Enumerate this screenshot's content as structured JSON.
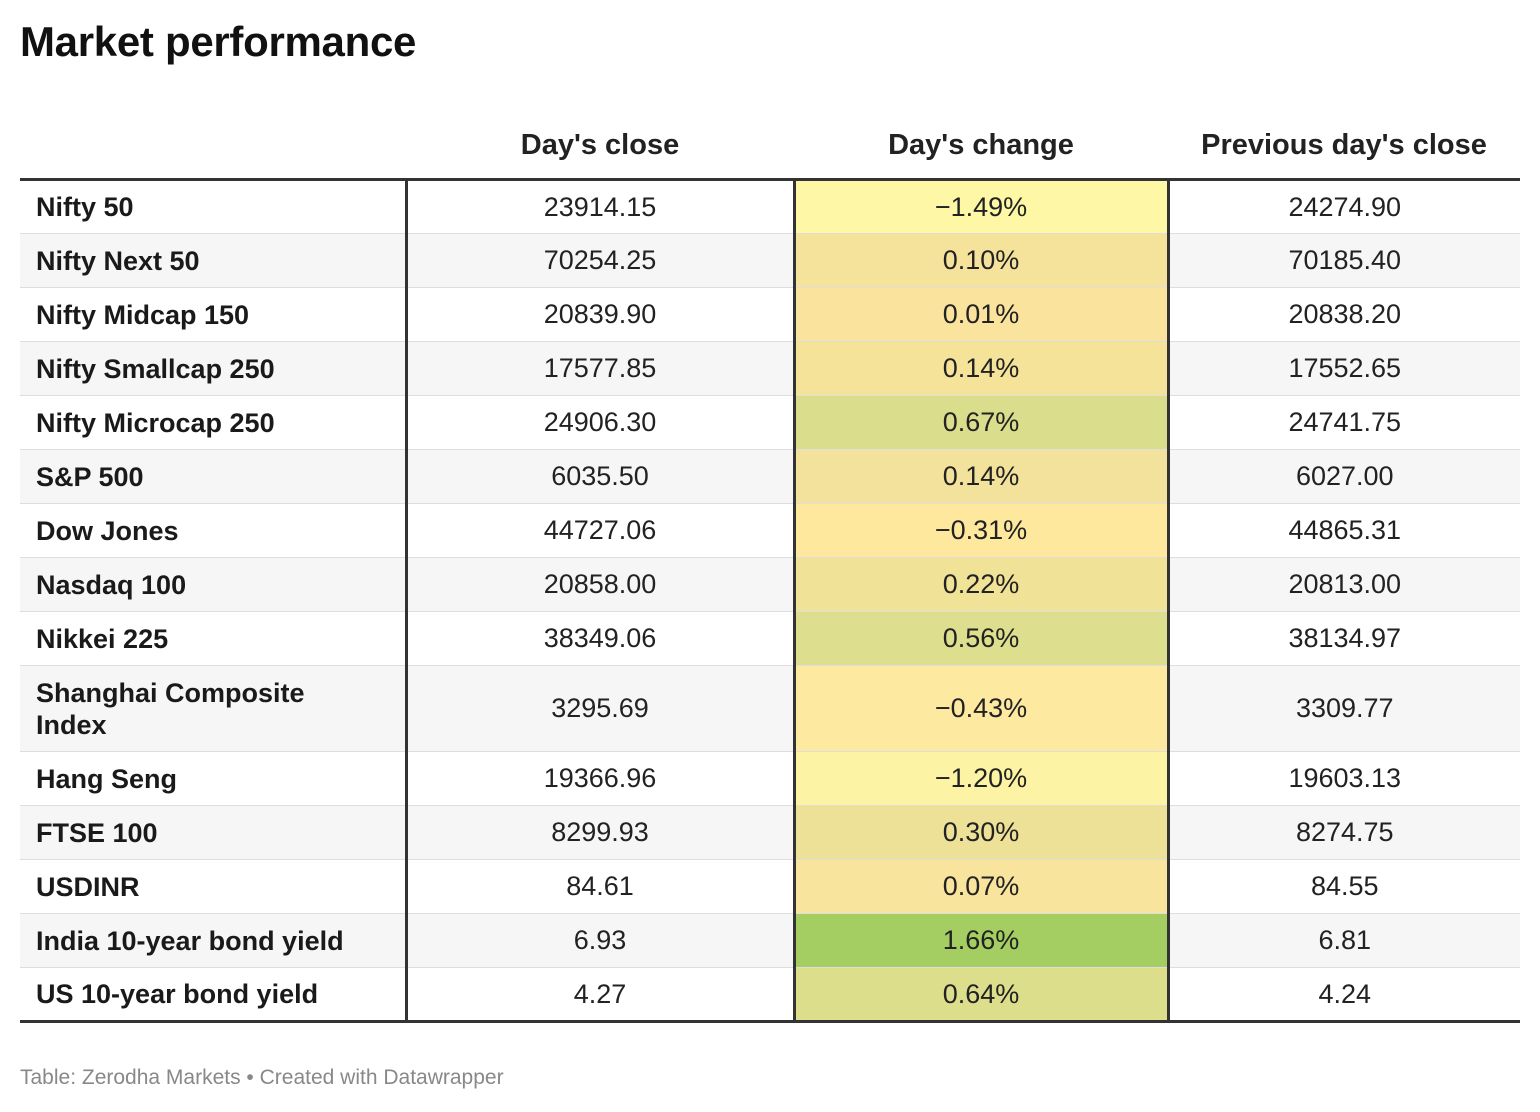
{
  "title": "Market performance",
  "footer": "Table: Zerodha Markets • Created with Datawrapper",
  "columns": [
    "",
    "Day's close",
    "Day's change",
    "Previous day's close"
  ],
  "rows": [
    {
      "name": "Nifty 50",
      "close": "23914.15",
      "change": "−1.49%",
      "prev": "24274.90",
      "color": "#fdf7a6"
    },
    {
      "name": "Nifty Next 50",
      "close": "70254.25",
      "change": "0.10%",
      "prev": "70185.40",
      "color": "#f6e39b"
    },
    {
      "name": "Nifty Midcap 150",
      "close": "20839.90",
      "change": "0.01%",
      "prev": "20838.20",
      "color": "#fae49d"
    },
    {
      "name": "Nifty Smallcap 250",
      "close": "17577.85",
      "change": "0.14%",
      "prev": "17552.65",
      "color": "#f5e39a"
    },
    {
      "name": "Nifty Microcap 250",
      "close": "24906.30",
      "change": "0.67%",
      "prev": "24741.75",
      "color": "#dadd8b"
    },
    {
      "name": "S&P 500",
      "close": "6035.50",
      "change": "0.14%",
      "prev": "6027.00",
      "color": "#f3e29b"
    },
    {
      "name": "Dow Jones",
      "close": "44727.06",
      "change": "−0.31%",
      "prev": "44865.31",
      "color": "#fde89e"
    },
    {
      "name": "Nasdaq 100",
      "close": "20858.00",
      "change": "0.22%",
      "prev": "20813.00",
      "color": "#f0e296"
    },
    {
      "name": "Nikkei 225",
      "close": "38349.06",
      "change": "0.56%",
      "prev": "38134.97",
      "color": "#dedf8e"
    },
    {
      "name": "Shanghai Composite Index",
      "close": "3295.69",
      "change": "−0.43%",
      "prev": "3309.77",
      "color": "#fde99f",
      "tall": true
    },
    {
      "name": "Hang Seng",
      "close": "19366.96",
      "change": "−1.20%",
      "prev": "19603.13",
      "color": "#fcf3a4"
    },
    {
      "name": "FTSE 100",
      "close": "8299.93",
      "change": "0.30%",
      "prev": "8274.75",
      "color": "#ece196"
    },
    {
      "name": "USDINR",
      "close": "84.61",
      "change": "0.07%",
      "prev": "84.55",
      "color": "#f8e49c"
    },
    {
      "name": "India 10-year bond yield",
      "close": "6.93",
      "change": "1.66%",
      "prev": "6.81",
      "color": "#a4ce62"
    },
    {
      "name": "US 10-year bond yield",
      "close": "4.27",
      "change": "0.64%",
      "prev": "4.24",
      "color": "#dcde8c"
    }
  ],
  "chart_data": {
    "type": "table",
    "title": "Market performance",
    "columns": [
      "",
      "Day's close",
      "Day's change",
      "Previous day's close"
    ],
    "rows": [
      [
        "Nifty 50",
        23914.15,
        -1.49,
        24274.9
      ],
      [
        "Nifty Next 50",
        70254.25,
        0.1,
        70185.4
      ],
      [
        "Nifty Midcap 150",
        20839.9,
        0.01,
        20838.2
      ],
      [
        "Nifty Smallcap 250",
        17577.85,
        0.14,
        17552.65
      ],
      [
        "Nifty Microcap 250",
        24906.3,
        0.67,
        24741.75
      ],
      [
        "S&P 500",
        6035.5,
        0.14,
        6027.0
      ],
      [
        "Dow Jones",
        44727.06,
        -0.31,
        44865.31
      ],
      [
        "Nasdaq 100",
        20858.0,
        0.22,
        20813.0
      ],
      [
        "Nikkei 225",
        38349.06,
        0.56,
        38134.97
      ],
      [
        "Shanghai Composite Index",
        3295.69,
        -0.43,
        3309.77
      ],
      [
        "Hang Seng",
        19366.96,
        -1.2,
        19603.13
      ],
      [
        "FTSE 100",
        8299.93,
        0.3,
        8274.75
      ],
      [
        "USDINR",
        84.61,
        0.07,
        84.55
      ],
      [
        "India 10-year bond yield",
        6.93,
        1.66,
        6.81
      ],
      [
        "US 10-year bond yield",
        4.27,
        0.64,
        4.24
      ]
    ]
  }
}
